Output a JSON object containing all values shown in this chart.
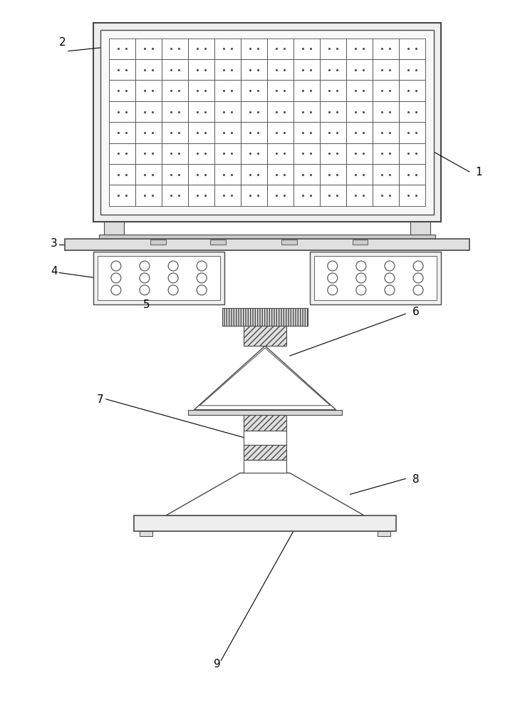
{
  "bg_color": "#ffffff",
  "line_color": "#4a4a4a",
  "lw": 1.0,
  "fig_w": 7.44,
  "fig_h": 10.0,
  "grid_cols": 12,
  "grid_rows": 8,
  "lamp_cols": 4,
  "lamp_rows": 3
}
